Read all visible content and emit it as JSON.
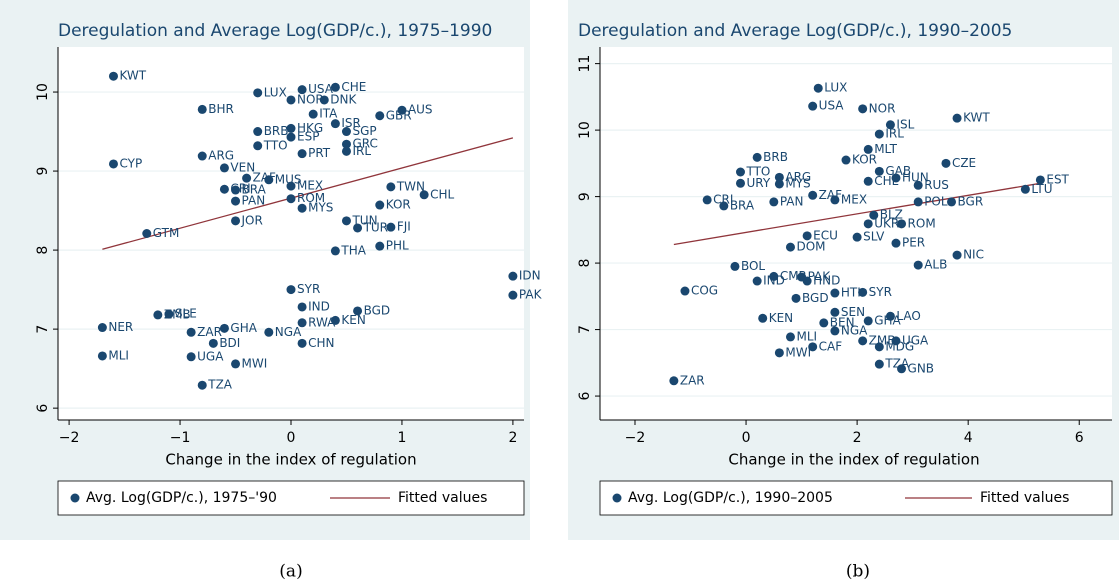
{
  "chart_data": [
    {
      "type": "scatter",
      "title": "Deregulation and Average Log(GDP/c.), 1975–1990",
      "x_label": "Change in the index of regulation",
      "caption": "(a)",
      "xlim": [
        -2.1,
        2.1
      ],
      "ylim": [
        5.85,
        10.57
      ],
      "xticks": [
        {
          "value": -2,
          "label": "−2"
        },
        {
          "value": -1,
          "label": "−1"
        },
        0,
        1,
        2
      ],
      "yticks": [
        6,
        7,
        8,
        9,
        10
      ],
      "grid": true,
      "series": [
        {
          "name": "Avg. Log(GDP/c.), 1975–'90",
          "color": "#1a476f",
          "labels": [
            "KWT",
            "BHR",
            "CYP",
            "ARG",
            "GTM",
            "LUX",
            "USA",
            "CHE",
            "NOR",
            "DNK",
            "AUS",
            "BRB",
            "ESP",
            "HKG",
            "ISR",
            "SGP",
            "GRC",
            "IRL",
            "PRT",
            "TTO",
            "GBR",
            "ITA",
            "VEN",
            "ZAF",
            "MUS",
            "BRA",
            "CRI",
            "PAN",
            "MEX",
            "ROM",
            "MYS",
            "JOR",
            "TWN",
            "CHL",
            "KOR",
            "TUN",
            "FJI",
            "TUR",
            "PHL",
            "THA",
            "IDN",
            "PAK",
            "SYR",
            "IND",
            "BGD",
            "RWA",
            "KEN",
            "CHN",
            "NGA",
            "GHA",
            "ZAR",
            "SLE",
            "ZMB",
            "BDI",
            "NER",
            "MLI",
            "UGA",
            "MWI",
            "TZA"
          ],
          "x": [
            -1.6,
            -0.8,
            -1.6,
            -0.8,
            -1.3,
            -0.3,
            0.1,
            0.4,
            0,
            0.3,
            1.0,
            -0.3,
            0,
            0,
            0.4,
            0.5,
            0.5,
            0.5,
            0.1,
            -0.3,
            0.8,
            0.2,
            -0.6,
            -0.4,
            -0.2,
            -0.5,
            -0.6,
            -0.5,
            0,
            0,
            0.1,
            -0.5,
            0.9,
            1.2,
            0.8,
            0.5,
            0.9,
            0.6,
            0.8,
            0.4,
            2.0,
            2.0,
            0,
            0.1,
            0.6,
            0.1,
            0.4,
            0.1,
            -0.2,
            -0.6,
            -0.9,
            -1.1,
            -1.2,
            -0.7,
            -1.7,
            -1.7,
            -0.9,
            -0.5,
            -0.8
          ],
          "values": [
            10.2,
            9.78,
            9.09,
            9.19,
            8.21,
            9.99,
            10.03,
            10.06,
            9.9,
            9.9,
            9.77,
            9.5,
            9.43,
            9.54,
            9.6,
            9.5,
            9.34,
            9.25,
            9.22,
            9.32,
            9.7,
            9.72,
            9.04,
            8.91,
            8.89,
            8.76,
            8.77,
            8.62,
            8.81,
            8.65,
            8.53,
            8.37,
            8.8,
            8.7,
            8.57,
            8.37,
            8.29,
            8.28,
            8.05,
            7.99,
            7.67,
            7.43,
            7.5,
            7.28,
            7.23,
            7.08,
            7.11,
            6.82,
            6.96,
            7.01,
            6.96,
            7.19,
            7.18,
            6.82,
            7.02,
            6.66,
            6.65,
            6.56,
            6.29
          ]
        },
        {
          "name": "Fitted values",
          "color": "#90353b",
          "x": [
            -1.7,
            2
          ],
          "values": [
            8.01,
            9.42
          ]
        }
      ]
    },
    {
      "type": "scatter",
      "title": "Deregulation and Average Log(GDP/c.), 1990–2005",
      "x_label": "Change in the index of regulation",
      "caption": "(b)",
      "xlim": [
        -2.63,
        6.59
      ],
      "ylim": [
        5.64,
        11.25
      ],
      "xticks": [
        {
          "value": -2,
          "label": "−2"
        },
        0,
        2,
        4,
        6
      ],
      "yticks": [
        6,
        7,
        8,
        9,
        10,
        11
      ],
      "grid": true,
      "series": [
        {
          "name": "Avg. Log(GDP/c.), 1990–2005",
          "color": "#1a476f",
          "labels": [
            "LUX",
            "USA",
            "NOR",
            "KWT",
            "ISL",
            "IRL",
            "MLT",
            "BRB",
            "CZE",
            "KOR",
            "GAB",
            "HUN",
            "CHL",
            "RUS",
            "EST",
            "LTU",
            "TTO",
            "URY",
            "ARG",
            "MYS",
            "ZAF",
            "MEX",
            "CRI",
            "BRA",
            "PAN",
            "POL",
            "BGR",
            "ROM",
            "BLZ",
            "UKR",
            "SLV",
            "PER",
            "NIC",
            "ALB",
            "BOL",
            "IND",
            "PAK",
            "HND",
            "SYR",
            "HTI",
            "CMR",
            "COG",
            "BGD",
            "SEN",
            "LAO",
            "GHA",
            "KEN",
            "BEN",
            "NGA",
            "MLI",
            "UGA",
            "ZMB",
            "MDG",
            "CAF",
            "MWI",
            "TZA",
            "GNB",
            "ZAR",
            "ECU",
            "DOM"
          ],
          "x": [
            1.3,
            1.2,
            2.1,
            3.8,
            2.6,
            2.4,
            2.2,
            0.2,
            3.6,
            1.8,
            2.4,
            2.7,
            2.2,
            3.1,
            5.3,
            5.03,
            -0.1,
            -0.1,
            0.6,
            0.6,
            1.2,
            1.6,
            -0.7,
            -0.4,
            0.5,
            3.1,
            3.7,
            2.8,
            2.3,
            2.2,
            2.0,
            2.7,
            3.8,
            3.1,
            -0.2,
            0.2,
            1.0,
            1.1,
            2.1,
            1.6,
            0.5,
            -1.1,
            0.9,
            1.6,
            2.6,
            2.2,
            0.3,
            1.4,
            1.6,
            0.8,
            2.7,
            2.1,
            2.4,
            1.2,
            0.6,
            2.4,
            2.8,
            -1.3,
            1.1,
            0.8
          ],
          "values": [
            10.63,
            10.36,
            10.32,
            10.18,
            10.08,
            9.94,
            9.71,
            9.59,
            9.5,
            9.55,
            9.38,
            9.28,
            9.23,
            9.17,
            9.25,
            9.11,
            9.37,
            9.2,
            9.29,
            9.19,
            9.02,
            8.95,
            8.95,
            8.86,
            8.92,
            8.92,
            8.92,
            8.59,
            8.72,
            8.59,
            8.39,
            8.3,
            8.12,
            7.97,
            7.95,
            7.73,
            7.79,
            7.73,
            7.56,
            7.55,
            7.8,
            7.58,
            7.47,
            7.26,
            7.2,
            7.13,
            7.17,
            7.1,
            6.98,
            6.89,
            6.83,
            6.83,
            6.74,
            6.74,
            6.65,
            6.48,
            6.41,
            6.23,
            8.41,
            8.24
          ]
        },
        {
          "name": "Fitted values",
          "color": "#90353b",
          "x": [
            -1.3,
            5.3
          ],
          "values": [
            8.28,
            9.2
          ]
        }
      ]
    }
  ]
}
